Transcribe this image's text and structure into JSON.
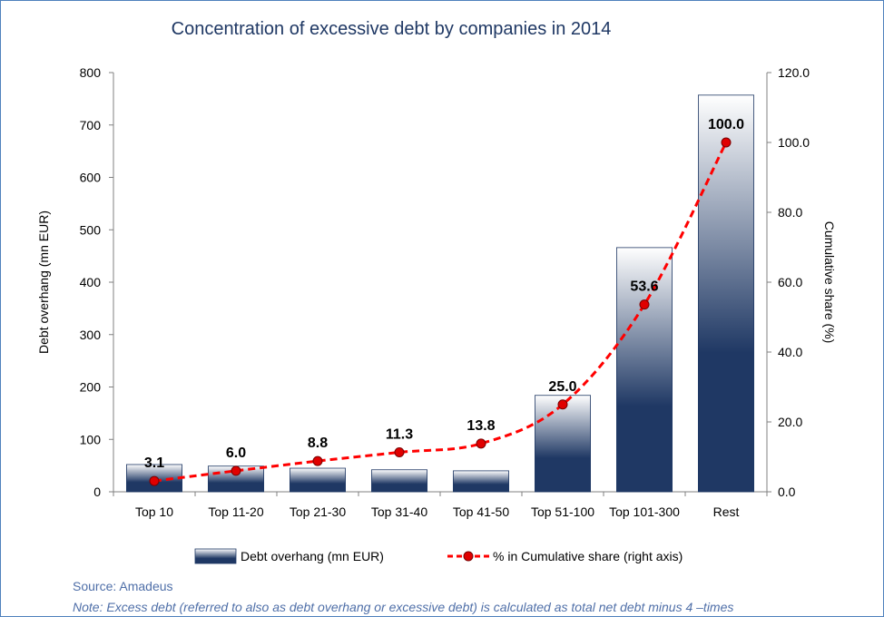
{
  "chart_data": {
    "type": "bar",
    "title": "Concentration of excessive debt by companies in 2014",
    "categories": [
      "Top 10",
      "Top 11-20",
      "Top 21-30",
      "Top 31-40",
      "Top 41-50",
      "Top 51-100",
      "Top 101-300",
      "Rest"
    ],
    "series": [
      {
        "name": "Debt overhang (mn EUR)",
        "type": "bar",
        "axis": "left",
        "values": [
          52,
          49,
          45,
          42,
          40,
          184,
          466,
          757
        ]
      },
      {
        "name": "% in Cumulative share (right axis)",
        "type": "line",
        "axis": "right",
        "values": [
          3.1,
          6.0,
          8.8,
          11.3,
          13.8,
          25.0,
          53.6,
          100.0
        ],
        "labels": [
          "3.1",
          "6.0",
          "8.8",
          "11.3",
          "13.8",
          "25.0",
          "53.6",
          "100.0"
        ]
      }
    ],
    "ylabel": "Debt overhang (mn  EUR)",
    "y2label": "Cumulative share (%)",
    "ylim": [
      0,
      800
    ],
    "y2lim": [
      0,
      120
    ],
    "yticks": [
      "0",
      "100",
      "200",
      "300",
      "400",
      "500",
      "600",
      "700",
      "800"
    ],
    "y2ticks": [
      "0.0",
      "20.0",
      "40.0",
      "60.0",
      "80.0",
      "100.0",
      "120.0"
    ],
    "grid": false,
    "legend_position": "bottom"
  },
  "colors": {
    "bar_dark": "#1f3864",
    "bar_light": "#ffffff",
    "line": "#ff0000",
    "marker_fill": "#e00000",
    "title": "#1f3864",
    "note": "#4f6fa8",
    "frame": "#4f81bd"
  },
  "footer": {
    "source": "Source: Amadeus",
    "note": "Note: Excess debt (referred to also as debt overhang or excessive debt) is calculated as total net debt minus 4 –times"
  }
}
